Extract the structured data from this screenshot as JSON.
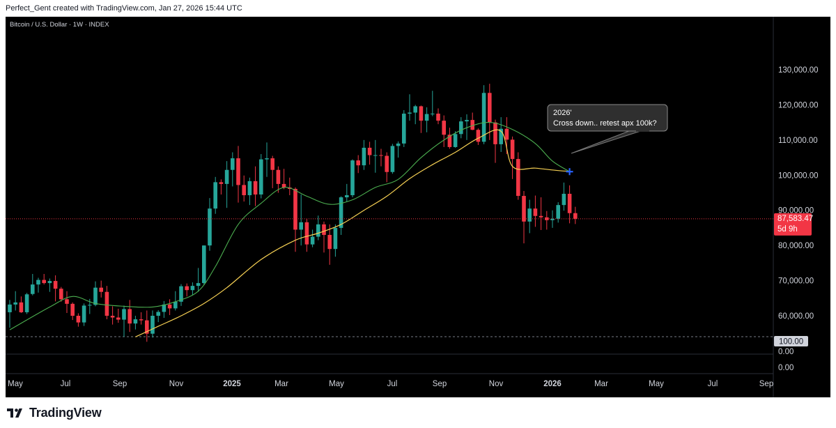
{
  "header": {
    "credit": "Perfect_Gent created with TradingView.com, Jan 27, 2026 15:44 UTC"
  },
  "footer": {
    "brand": "TradingView"
  },
  "colors": {
    "up": "#26a69a",
    "down": "#f23645",
    "ma_fast": "#4caf50",
    "ma_slow": "#f7d154",
    "background": "#000000",
    "axis_text": "#d1d4dc"
  },
  "chart_data": {
    "type": "candlestick",
    "symbol_line": "Bitcoin / U.S. Dollar · 1W · INDEX",
    "x_ticks": [
      "May",
      "Jul",
      "Sep",
      "Nov",
      "2025",
      "Mar",
      "May",
      "Jul",
      "Sep",
      "Nov",
      "2026",
      "Mar",
      "May",
      "Jul",
      "Sep"
    ],
    "bold_x_ticks": [
      "2025",
      "2026"
    ],
    "y_ticks": [
      "130,000.00",
      "120,000.00",
      "110,000.00",
      "100,000.00",
      "90,000.00",
      "80,000.00",
      "70,000.00",
      "60,000.00"
    ],
    "ylim": [
      54000,
      136000
    ],
    "first_week": "2024-04-29",
    "last_price": "87,583.47",
    "countdown": "5d 9h",
    "annotation": {
      "line1": "2026'",
      "line2": "Cross down.. retest apx 100k?"
    },
    "indicator_pane": {
      "value_label": "100.00",
      "ticks": [
        "0.00",
        "0.00"
      ]
    },
    "candles": [
      [
        61000,
        64500,
        56600,
        63200
      ],
      [
        63200,
        67000,
        61500,
        63800
      ],
      [
        63800,
        65500,
        60800,
        61000
      ],
      [
        61000,
        66500,
        60500,
        66100
      ],
      [
        66200,
        71900,
        65800,
        68900
      ],
      [
        68900,
        70800,
        66600,
        70200
      ],
      [
        70200,
        71900,
        68900,
        69300
      ],
      [
        69300,
        70600,
        66800,
        69900
      ],
      [
        69900,
        71500,
        64100,
        67700
      ],
      [
        67700,
        68200,
        64000,
        64700
      ],
      [
        64700,
        67000,
        60800,
        63400
      ],
      [
        63400,
        63800,
        58800,
        60000
      ],
      [
        60000,
        60700,
        56900,
        58100
      ],
      [
        58100,
        63500,
        57100,
        62900
      ],
      [
        62900,
        64800,
        60500,
        63100
      ],
      [
        63100,
        69800,
        62700,
        68000
      ],
      [
        68000,
        70000,
        65200,
        66800
      ],
      [
        66800,
        68500,
        59000,
        60000
      ],
      [
        60000,
        62700,
        57500,
        59500
      ],
      [
        59500,
        62000,
        58000,
        58900
      ],
      [
        58900,
        62900,
        54000,
        61900
      ],
      [
        61900,
        64500,
        55400,
        57800
      ],
      [
        57800,
        60000,
        56100,
        59000
      ],
      [
        59000,
        61000,
        57500,
        58700
      ],
      [
        58700,
        61500,
        52600,
        54900
      ],
      [
        54900,
        61500,
        53800,
        60000
      ],
      [
        60000,
        61600,
        58200,
        61100
      ],
      [
        61100,
        64200,
        59400,
        63200
      ],
      [
        63200,
        64700,
        60200,
        62100
      ],
      [
        62100,
        67000,
        61500,
        64000
      ],
      [
        64000,
        69000,
        62800,
        68400
      ],
      [
        68400,
        69200,
        65500,
        67300
      ],
      [
        67300,
        69500,
        65800,
        68500
      ],
      [
        68500,
        73600,
        66800,
        69300
      ],
      [
        69300,
        80000,
        68800,
        80000
      ],
      [
        80000,
        93500,
        78500,
        90500
      ],
      [
        90500,
        99500,
        89000,
        98000
      ],
      [
        98000,
        98800,
        94500,
        97500
      ],
      [
        97500,
        104000,
        90700,
        101500
      ],
      [
        101500,
        106500,
        96800,
        104800
      ],
      [
        104800,
        108300,
        92200,
        97200
      ],
      [
        97200,
        99900,
        92500,
        94300
      ],
      [
        94300,
        99300,
        91500,
        98300
      ],
      [
        98300,
        102500,
        91200,
        94500
      ],
      [
        94500,
        106000,
        93400,
        104500
      ],
      [
        104500,
        109300,
        99500,
        104800
      ],
      [
        104800,
        105500,
        96300,
        101500
      ],
      [
        101500,
        102500,
        95000,
        97500
      ],
      [
        97500,
        101800,
        96000,
        96500
      ],
      [
        96500,
        99300,
        94300,
        96100
      ],
      [
        96100,
        96500,
        78200,
        84500
      ],
      [
        84500,
        94500,
        80000,
        86600
      ],
      [
        86600,
        87600,
        78200,
        80300
      ],
      [
        80300,
        84500,
        79500,
        82500
      ],
      [
        82500,
        88500,
        81500,
        86000
      ],
      [
        86000,
        86800,
        78000,
        83000
      ],
      [
        83000,
        86000,
        74500,
        79000
      ],
      [
        79000,
        86000,
        76800,
        85000
      ],
      [
        85000,
        94000,
        83000,
        93700
      ],
      [
        93700,
        97500,
        92500,
        94300
      ],
      [
        94300,
        104500,
        93700,
        104200
      ],
      [
        104200,
        105700,
        100600,
        102800
      ],
      [
        102800,
        110000,
        101500,
        107800
      ],
      [
        107800,
        109500,
        103000,
        105700
      ],
      [
        105700,
        110000,
        100700,
        105700
      ],
      [
        105700,
        107500,
        102500,
        105500
      ],
      [
        105500,
        106500,
        98000,
        100900
      ],
      [
        100900,
        108900,
        100400,
        108300
      ],
      [
        108300,
        109600,
        105000,
        109000
      ],
      [
        109000,
        118500,
        108000,
        117500
      ],
      [
        117500,
        123000,
        115500,
        117800
      ],
      [
        117800,
        120000,
        114500,
        119600
      ],
      [
        119600,
        119800,
        112000,
        115500
      ],
      [
        115500,
        119300,
        112200,
        117400
      ],
      [
        117400,
        124000,
        116800,
        117500
      ],
      [
        117500,
        119000,
        114500,
        115500
      ],
      [
        115500,
        117000,
        108000,
        111500
      ],
      [
        111500,
        113500,
        107500,
        108000
      ],
      [
        108000,
        112500,
        107800,
        111700
      ],
      [
        111700,
        116500,
        110500,
        115300
      ],
      [
        115300,
        117300,
        110000,
        115700
      ],
      [
        115700,
        117800,
        112800,
        112900
      ],
      [
        112900,
        113300,
        108600,
        109500
      ],
      [
        109500,
        125600,
        108800,
        123400
      ],
      [
        123400,
        126000,
        110000,
        115000
      ],
      [
        115000,
        115800,
        103500,
        108800
      ],
      [
        108800,
        116500,
        106600,
        113200
      ],
      [
        113200,
        116500,
        106000,
        110100
      ],
      [
        110100,
        111000,
        98900,
        104600
      ],
      [
        104600,
        106500,
        93000,
        94100
      ],
      [
        94100,
        95500,
        80600,
        86800
      ],
      [
        86800,
        93000,
        83500,
        90500
      ],
      [
        90500,
        94200,
        85300,
        88400
      ],
      [
        88400,
        93700,
        84400,
        88000
      ],
      [
        88000,
        89800,
        84500,
        87200
      ],
      [
        87200,
        90000,
        85000,
        87600
      ],
      [
        87600,
        92300,
        86500,
        91500
      ],
      [
        91500,
        97900,
        89900,
        94700
      ],
      [
        94700,
        97100,
        86300,
        89200
      ],
      [
        89200,
        91000,
        86100,
        87583
      ]
    ],
    "ma_fast": [
      [
        0,
        56000
      ],
      [
        7,
        62500
      ],
      [
        11,
        65500
      ],
      [
        15,
        63500
      ],
      [
        20,
        62700
      ],
      [
        25,
        62500
      ],
      [
        29,
        64000
      ],
      [
        33,
        67000
      ],
      [
        36,
        74000
      ],
      [
        40,
        86000
      ],
      [
        44,
        92000
      ],
      [
        48,
        96500
      ],
      [
        52,
        94000
      ],
      [
        56,
        91700
      ],
      [
        60,
        93000
      ],
      [
        64,
        96500
      ],
      [
        68,
        98800
      ],
      [
        72,
        105000
      ],
      [
        76,
        110000
      ],
      [
        80,
        113500
      ],
      [
        84,
        115000
      ],
      [
        88,
        113000
      ],
      [
        92,
        109000
      ],
      [
        95,
        104000
      ],
      [
        98,
        101000
      ]
    ],
    "ma_slow": [
      [
        22,
        54000
      ],
      [
        26,
        57000
      ],
      [
        30,
        60000
      ],
      [
        34,
        63500
      ],
      [
        38,
        68000
      ],
      [
        44,
        76000
      ],
      [
        50,
        81500
      ],
      [
        54,
        83500
      ],
      [
        58,
        86000
      ],
      [
        62,
        90000
      ],
      [
        66,
        94000
      ],
      [
        70,
        99000
      ],
      [
        74,
        103000
      ],
      [
        78,
        106500
      ],
      [
        82,
        110500
      ],
      [
        86,
        112500
      ],
      [
        88,
        102500
      ],
      [
        92,
        102000
      ],
      [
        96,
        101300
      ],
      [
        98,
        101100
      ]
    ],
    "cross_point": [
      98,
      101000
    ]
  }
}
